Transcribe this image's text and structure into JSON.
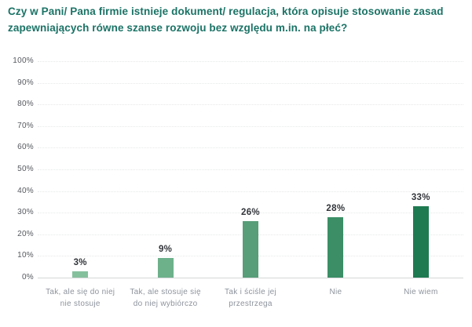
{
  "title": "Czy w Pani/ Pana firmie istnieje dokument/ regulacja, która opisuje stosowanie zasad zapewniających równe szanse rozwoju bez względu m.in. na płeć?",
  "colors": {
    "title_text": "#1b7366",
    "y_tick_text": "#55585e",
    "x_label_text": "#8d939c",
    "value_label_text": "#32353a",
    "gridline": "#e7e8e9",
    "axis_baseline": "#d4d6d8",
    "background": "#ffffff"
  },
  "chart_data": {
    "type": "bar",
    "title": "Czy w Pani/ Pana firmie istnieje dokument/ regulacja, która opisuje stosowanie zasad zapewniających równe szanse rozwoju bez względu m.in. na płeć?",
    "categories": [
      "Tak, ale się do niej nie stosuje",
      "Tak, ale stosuje się do niej wybiórczo",
      "Tak i ściśle jej przestrzega",
      "Nie",
      "Nie wiem"
    ],
    "values": [
      3,
      9,
      26,
      28,
      33
    ],
    "value_labels": [
      "3%",
      "9%",
      "26%",
      "28%",
      "33%"
    ],
    "bar_colors": [
      "#85c09d",
      "#6db18b",
      "#579e79",
      "#3b8e66",
      "#1e7a51"
    ],
    "xlabel": "",
    "ylabel": "",
    "ylim": [
      0,
      100
    ],
    "ytick_step": 10,
    "ytick_labels": [
      "0%",
      "10%",
      "20%",
      "30%",
      "40%",
      "50%",
      "60%",
      "70%",
      "80%",
      "90%",
      "100%"
    ],
    "grid": "horizontal-dotted",
    "legend": "none"
  }
}
